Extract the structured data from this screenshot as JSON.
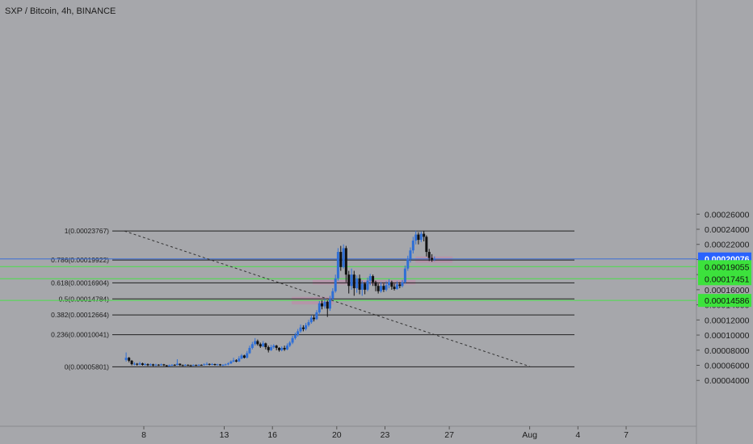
{
  "header": {
    "title": "SXP / Bitcoin, 4h, BINANCE"
  },
  "colors": {
    "background": "#a6a7ab",
    "up_candle": "#2f6fd6",
    "down_candle": "#111111",
    "level_line": "#222222",
    "green_line": "#49e04a",
    "blue_line": "#3b6fd8",
    "zone": "#b98fa8",
    "price_badge": "#2962ff",
    "green_badge": "#3ce23c"
  },
  "chart_data": {
    "type": "candlestick",
    "title": "SXP / Bitcoin, 4h, BINANCE",
    "x_tick_labels": [
      "8",
      "13",
      "16",
      "20",
      "23",
      "27",
      "Aug",
      "4",
      "7"
    ],
    "x_tick_days": [
      8,
      13,
      16,
      20,
      23,
      27,
      32,
      35,
      38
    ],
    "y_tick_labels": [
      "0.00004000",
      "0.00006000",
      "0.00008000",
      "0.00010000",
      "0.00012000",
      "0.00014000",
      "0.00016000",
      "0.00018000",
      "0.00020000",
      "0.00022000",
      "0.00024000",
      "0.00026000"
    ],
    "y_tick_values": [
      4e-05,
      6e-05,
      8e-05,
      0.0001,
      0.00012,
      0.00014,
      0.00016,
      0.00018,
      0.0002,
      0.00022,
      0.00024,
      0.00026
    ],
    "ylim": [
      2.9e-05,
      0.000272
    ],
    "fib_levels": [
      {
        "label": "1(0.00023767)",
        "value": 0.00023767
      },
      {
        "label": "0.786(0.00019922)",
        "value": 0.00019922
      },
      {
        "label": "0.618(0.00016904)",
        "value": 0.00016904
      },
      {
        "label": "0.5(0.00014784)",
        "value": 0.00014784
      },
      {
        "label": "0.382(0.00012664)",
        "value": 0.00012664
      },
      {
        "label": "0.236(0.00010041)",
        "value": 0.00010041
      },
      {
        "label": "0(0.00005801)",
        "value": 5.801e-05
      }
    ],
    "horizontal_lines": [
      {
        "kind": "current-price",
        "value": 0.00020076,
        "label": "0.00020076",
        "countdown": "03:51:14"
      },
      {
        "kind": "support",
        "value": 0.00019055,
        "label": "0.00019055"
      },
      {
        "kind": "support",
        "value": 0.00017451,
        "label": "0.00017451"
      },
      {
        "kind": "support",
        "value": 0.00014586,
        "label": "0.00014586"
      }
    ],
    "zones": [
      {
        "day_start": 17.2,
        "day_end": 19.8,
        "high": 0.0001505,
        "low": 0.0001405
      },
      {
        "day_start": 18.5,
        "day_end": 24.9,
        "high": 0.0001728,
        "low": 0.0001668
      },
      {
        "day_start": 24.9,
        "day_end": 27.2,
        "high": 0.000204,
        "low": 0.0001958
      }
    ],
    "trend_line": {
      "start": {
        "day": 6.8,
        "value": 0.0002376
      },
      "end": {
        "day": 32.0,
        "value": 5.85e-05
      }
    },
    "candles": [
      [
        6.9,
        6.7e-05,
        7e-05,
        7.7e-05,
        6.5e-05
      ],
      [
        7.08,
        7e-05,
        6.6e-05,
        7.1e-05,
        6.4e-05
      ],
      [
        7.25,
        6.6e-05,
        6.15e-05,
        6.7e-05,
        6e-05
      ],
      [
        7.42,
        6.15e-05,
        6.2e-05,
        6.4e-05,
        6e-05
      ],
      [
        7.58,
        6.2e-05,
        6.1e-05,
        6.3e-05,
        5.95e-05
      ],
      [
        7.75,
        6.1e-05,
        6.25e-05,
        6.45e-05,
        6e-05
      ],
      [
        7.92,
        6.25e-05,
        6.05e-05,
        6.35e-05,
        5.95e-05
      ],
      [
        8.08,
        6.05e-05,
        6.15e-05,
        6.3e-05,
        5.95e-05
      ],
      [
        8.25,
        6.15e-05,
        6e-05,
        6.25e-05,
        5.9e-05
      ],
      [
        8.42,
        6e-05,
        6.12e-05,
        6.25e-05,
        5.92e-05
      ],
      [
        8.58,
        6.12e-05,
        5.98e-05,
        6.2e-05,
        5.88e-05
      ],
      [
        8.75,
        5.98e-05,
        6.08e-05,
        6.2e-05,
        5.9e-05
      ],
      [
        8.92,
        6.08e-05,
        6.02e-05,
        6.15e-05,
        5.92e-05
      ],
      [
        9.08,
        6.02e-05,
        6.12e-05,
        6.22e-05,
        5.94e-05
      ],
      [
        9.25,
        6.12e-05,
        6e-05,
        6.18e-05,
        5.9e-05
      ],
      [
        9.42,
        6e-05,
        5.88e-05,
        6.05e-05,
        5.8e-05
      ],
      [
        9.58,
        5.88e-05,
        6e-05,
        6.1e-05,
        5.82e-05
      ],
      [
        9.75,
        6e-05,
        6.06e-05,
        6.15e-05,
        5.9e-05
      ],
      [
        9.92,
        6.06e-05,
        6.04e-05,
        6.15e-05,
        5.92e-05
      ],
      [
        10.08,
        6.04e-05,
        6.2e-05,
        6.8e-05,
        5.98e-05
      ],
      [
        10.25,
        6.2e-05,
        6.02e-05,
        6.25e-05,
        5.92e-05
      ],
      [
        10.42,
        6.02e-05,
        5.98e-05,
        6.1e-05,
        5.9e-05
      ],
      [
        10.58,
        5.98e-05,
        6.06e-05,
        6.15e-05,
        5.9e-05
      ],
      [
        10.75,
        6.06e-05,
        6e-05,
        6.12e-05,
        5.92e-05
      ],
      [
        10.92,
        6e-05,
        5.98e-05,
        6.08e-05,
        5.88e-05
      ],
      [
        11.08,
        5.98e-05,
        6.04e-05,
        6.12e-05,
        5.9e-05
      ],
      [
        11.25,
        6.04e-05,
        6e-05,
        6.1e-05,
        5.92e-05
      ],
      [
        11.42,
        6e-05,
        6.06e-05,
        6.14e-05,
        5.92e-05
      ],
      [
        11.58,
        6.06e-05,
        6.02e-05,
        6.12e-05,
        5.94e-05
      ],
      [
        11.75,
        6.02e-05,
        6.12e-05,
        6.25e-05,
        5.96e-05
      ],
      [
        11.92,
        6.12e-05,
        6.18e-05,
        6.4e-05,
        6e-05
      ],
      [
        12.08,
        6.18e-05,
        6.08e-05,
        6.25e-05,
        5.98e-05
      ],
      [
        12.25,
        6.08e-05,
        6.16e-05,
        6.28e-05,
        6e-05
      ],
      [
        12.42,
        6.16e-05,
        6.04e-05,
        6.22e-05,
        5.96e-05
      ],
      [
        12.58,
        6.04e-05,
        6.12e-05,
        6.2e-05,
        5.96e-05
      ],
      [
        12.75,
        6.12e-05,
        6e-05,
        6.18e-05,
        5.92e-05
      ],
      [
        12.92,
        6e-05,
        6.06e-05,
        6.15e-05,
        5.88e-05
      ],
      [
        13.08,
        6.06e-05,
        6.12e-05,
        6.22e-05,
        5.96e-05
      ],
      [
        13.25,
        6.12e-05,
        6.25e-05,
        6.4e-05,
        6e-05
      ],
      [
        13.42,
        6.25e-05,
        6.5e-05,
        6.65e-05,
        6.15e-05
      ],
      [
        13.58,
        6.5e-05,
        6.65e-05,
        7e-05,
        6.4e-05
      ],
      [
        13.75,
        6.65e-05,
        6.5e-05,
        6.8e-05,
        6.4e-05
      ],
      [
        13.92,
        6.5e-05,
        6.9e-05,
        7.2e-05,
        6.45e-05
      ],
      [
        14.08,
        6.9e-05,
        7.3e-05,
        7.5e-05,
        6.8e-05
      ],
      [
        14.25,
        7.3e-05,
        7e-05,
        7.4e-05,
        6.9e-05
      ],
      [
        14.42,
        7e-05,
        7.6e-05,
        7.9e-05,
        6.9e-05
      ],
      [
        14.58,
        7.6e-05,
        8.3e-05,
        8.6e-05,
        7.5e-05
      ],
      [
        14.75,
        8.3e-05,
        8.8e-05,
        9.1e-05,
        8.1e-05
      ],
      [
        14.92,
        8.8e-05,
        9.2e-05,
        9.6e-05,
        8.6e-05
      ],
      [
        15.08,
        9.2e-05,
        8.8e-05,
        9.4e-05,
        8.6e-05
      ],
      [
        15.25,
        8.8e-05,
        8.5e-05,
        9e-05,
        8.3e-05
      ],
      [
        15.42,
        8.5e-05,
        8.9e-05,
        9.2e-05,
        8.4e-05
      ],
      [
        15.58,
        8.9e-05,
        8.4e-05,
        9e-05,
        8.1e-05
      ],
      [
        15.75,
        8.4e-05,
        8e-05,
        8.6e-05,
        7.7e-05
      ],
      [
        15.92,
        8e-05,
        8.4e-05,
        8.7e-05,
        7.9e-05
      ],
      [
        16.08,
        8.4e-05,
        8.6e-05,
        8.8e-05,
        8.2e-05
      ],
      [
        16.25,
        8.6e-05,
        8.3e-05,
        8.7e-05,
        8e-05
      ],
      [
        16.42,
        8.3e-05,
        8e-05,
        8.4e-05,
        7.8e-05
      ],
      [
        16.58,
        8e-05,
        8.3e-05,
        8.5e-05,
        7.85e-05
      ],
      [
        16.75,
        8.3e-05,
        8.1e-05,
        8.6e-05,
        7.9e-05
      ],
      [
        16.92,
        8.1e-05,
        8.6e-05,
        8.9e-05,
        8e-05
      ],
      [
        17.08,
        8.6e-05,
        9e-05,
        9.2e-05,
        8.4e-05
      ],
      [
        17.25,
        9e-05,
        9.6e-05,
        9.9e-05,
        8.8e-05
      ],
      [
        17.42,
        9.6e-05,
        0.0001,
        0.000103,
        9.4e-05
      ],
      [
        17.58,
        0.0001,
        0.000105,
        0.000108,
        9.8e-05
      ],
      [
        17.75,
        0.000105,
        0.00011,
        0.000114,
        0.000103
      ],
      [
        17.92,
        0.00011,
        0.000108,
        0.000113,
        0.000105
      ],
      [
        18.08,
        0.000108,
        0.000113,
        0.000116,
        0.000106
      ],
      [
        18.25,
        0.000113,
        0.000117,
        0.00012,
        0.000111
      ],
      [
        18.42,
        0.000117,
        0.000123,
        0.000126,
        0.000115
      ],
      [
        18.58,
        0.000123,
        0.000121,
        0.000126,
        0.000118
      ],
      [
        18.75,
        0.000121,
        0.00013,
        0.000133,
        0.00012
      ],
      [
        18.92,
        0.00013,
        0.000142,
        0.000145,
        0.000128
      ],
      [
        19.08,
        0.000142,
        0.000138,
        0.000146,
        0.000134
      ],
      [
        19.25,
        0.000138,
        0.000144,
        0.000148,
        0.000135
      ],
      [
        19.42,
        0.000144,
        0.000135,
        0.000146,
        0.000124
      ],
      [
        19.58,
        0.000135,
        0.000148,
        0.000152,
        0.000132
      ],
      [
        19.75,
        0.000148,
        0.000158,
        0.000162,
        0.000146
      ],
      [
        19.92,
        0.000158,
        0.000175,
        0.00018,
        0.000156
      ],
      [
        20.08,
        0.000175,
        0.00021,
        0.000215,
        0.000172
      ],
      [
        20.25,
        0.00021,
        0.00019,
        0.000218,
        0.000185
      ],
      [
        20.42,
        0.00019,
        0.000215,
        0.00022,
        0.000188
      ],
      [
        20.58,
        0.000215,
        0.00018,
        0.000218,
        0.00017
      ],
      [
        20.75,
        0.00018,
        0.000165,
        0.000185,
        0.000155
      ],
      [
        20.92,
        0.000165,
        0.00018,
        0.000188,
        0.00016
      ],
      [
        21.08,
        0.00018,
        0.000162,
        0.000185,
        0.000152
      ],
      [
        21.25,
        0.000162,
        0.000175,
        0.000179,
        0.000156
      ],
      [
        21.42,
        0.000175,
        0.00016,
        0.00018,
        0.000154
      ],
      [
        21.58,
        0.00016,
        0.000168,
        0.000172,
        0.000152
      ],
      [
        21.75,
        0.000168,
        0.00016,
        0.00017,
        0.000154
      ],
      [
        21.92,
        0.00016,
        0.000172,
        0.000176,
        0.000158
      ],
      [
        22.08,
        0.000172,
        0.000178,
        0.000181,
        0.000166
      ],
      [
        22.25,
        0.000178,
        0.00017,
        0.00018,
        0.000165
      ],
      [
        22.42,
        0.00017,
        0.000165,
        0.000172,
        0.000158
      ],
      [
        22.58,
        0.000165,
        0.000158,
        0.000168,
        0.000155
      ],
      [
        22.75,
        0.000158,
        0.000165,
        0.00017,
        0.000156
      ],
      [
        22.92,
        0.000165,
        0.00016,
        0.000168,
        0.000157
      ],
      [
        23.08,
        0.00016,
        0.000166,
        0.000171,
        0.000158
      ],
      [
        23.25,
        0.000166,
        0.00017,
        0.000174,
        0.000162
      ],
      [
        23.42,
        0.00017,
        0.000164,
        0.000172,
        0.00016
      ],
      [
        23.58,
        0.000164,
        0.000161,
        0.000168,
        0.000159
      ],
      [
        23.75,
        0.000161,
        0.000167,
        0.000171,
        0.00016
      ],
      [
        23.92,
        0.000167,
        0.000165,
        0.00017,
        0.000162
      ],
      [
        24.08,
        0.000165,
        0.00017,
        0.000173,
        0.000163
      ],
      [
        24.25,
        0.00017,
        0.000188,
        0.000192,
        0.000168
      ],
      [
        24.42,
        0.000188,
        0.0002,
        0.000205,
        0.000185
      ],
      [
        24.58,
        0.0002,
        0.000212,
        0.000216,
        0.000196
      ],
      [
        24.75,
        0.000212,
        0.000225,
        0.00023,
        0.000208
      ],
      [
        24.92,
        0.000225,
        0.000233,
        0.000238,
        0.00022
      ],
      [
        25.08,
        0.000233,
        0.000226,
        0.000236,
        0.00022
      ],
      [
        25.25,
        0.000226,
        0.000234,
        0.000237,
        0.000223
      ],
      [
        25.42,
        0.000234,
        0.00023,
        0.000238,
        0.000224
      ],
      [
        25.58,
        0.00023,
        0.00021,
        0.000232,
        0.000204
      ],
      [
        25.75,
        0.00021,
        0.000202,
        0.000214,
        0.000198
      ],
      [
        25.92,
        0.000202,
        0.0002,
        0.000207,
        0.000197
      ],
      [
        26.08,
        0.0002,
        0.0002008,
        0.000204,
        0.000198
      ]
    ]
  }
}
